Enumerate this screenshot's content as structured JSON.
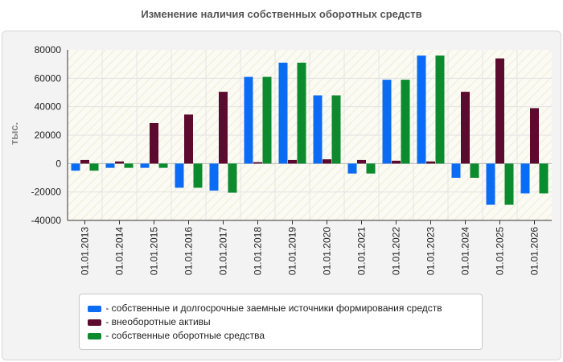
{
  "chart_data": {
    "type": "bar",
    "title": "Изменение наличия собственных оборотных средств",
    "ylabel": "тыс.",
    "ylim": [
      -40000,
      80000
    ],
    "yticks": [
      80000,
      60000,
      40000,
      20000,
      0,
      -20000,
      -40000
    ],
    "categories": [
      "01.01.2013",
      "01.01.2014",
      "01.01.2015",
      "01.01.2016",
      "01.01.2017",
      "01.01.2018",
      "01.01.2019",
      "01.01.2020",
      "01.01.2021",
      "01.01.2022",
      "01.01.2023",
      "01.01.2024",
      "01.01.2025",
      "01.01.2026"
    ],
    "series": [
      {
        "name": "- собственные и долгосрочные заемные источники формирования средств",
        "color": "#0a6cf5",
        "values": [
          -5000,
          -3000,
          -3000,
          -17000,
          -19000,
          61000,
          71000,
          48000,
          -7000,
          59000,
          76000,
          -10000,
          -29000,
          -21000
        ]
      },
      {
        "name": "- внеоборотные активы",
        "color": "#5c0a2e",
        "values": [
          2500,
          1500,
          28500,
          34500,
          50500,
          1000,
          2500,
          3000,
          2500,
          2000,
          1500,
          50500,
          74000,
          39000
        ]
      },
      {
        "name": "- собственные оборотные средства",
        "color": "#0b8a2e",
        "values": [
          -5000,
          -3000,
          -3000,
          -17000,
          -20500,
          61000,
          71000,
          48000,
          -7000,
          59000,
          76000,
          -10000,
          -29000,
          -21000
        ]
      }
    ],
    "grid": true,
    "legend_position": "bottom"
  }
}
